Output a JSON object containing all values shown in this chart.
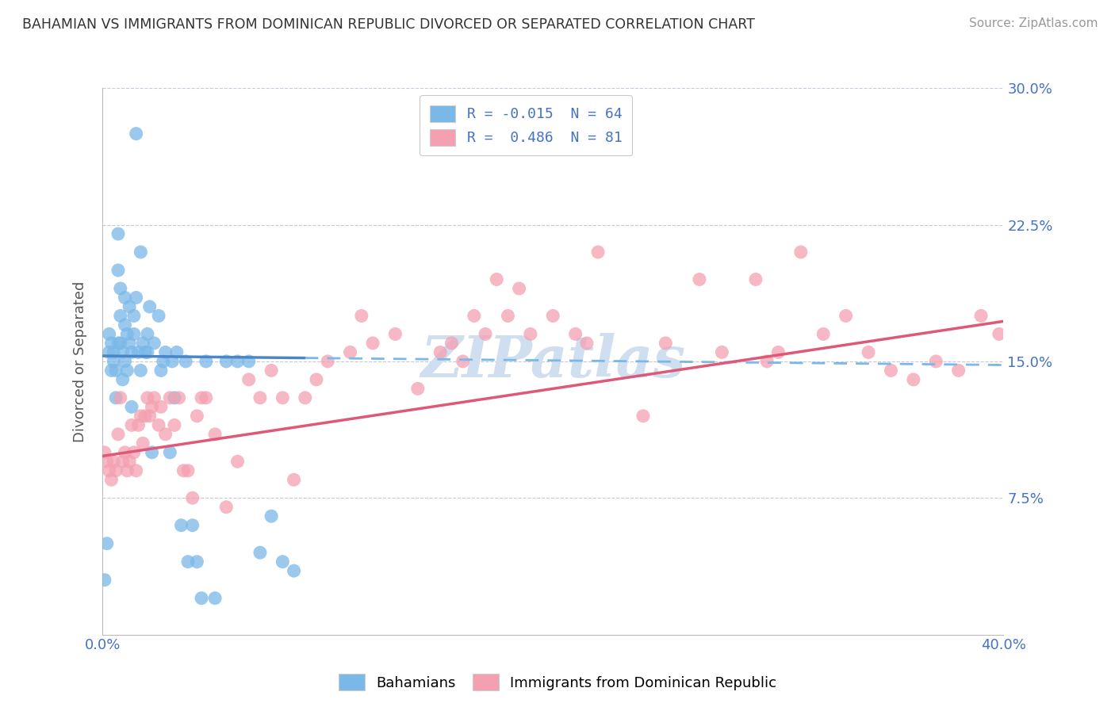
{
  "title": "BAHAMIAN VS IMMIGRANTS FROM DOMINICAN REPUBLIC DIVORCED OR SEPARATED CORRELATION CHART",
  "source": "Source: ZipAtlas.com",
  "ylabel": "Divorced or Separated",
  "xlim": [
    0.0,
    0.4
  ],
  "ylim": [
    0.0,
    0.3
  ],
  "bahamian_R": -0.015,
  "bahamian_N": 64,
  "dominican_R": 0.486,
  "dominican_N": 81,
  "blue_color": "#7ab8e8",
  "pink_color": "#f4a0b0",
  "blue_line_color": "#4a86c8",
  "pink_line_color": "#e05878",
  "blue_line_dashed_color": "#7ab8e8",
  "background_color": "#ffffff",
  "grid_color": "#c8c8d8",
  "title_color": "#333333",
  "source_color": "#999999",
  "tick_color": "#4472c4",
  "watermark_text": "ZIPatlas",
  "watermark_color": "#d0dff0",
  "blue_line_start_y": 0.153,
  "blue_line_end_y": 0.148,
  "pink_line_start_y": 0.098,
  "pink_line_end_y": 0.172,
  "bahamian_x": [
    0.001,
    0.002,
    0.003,
    0.003,
    0.004,
    0.004,
    0.005,
    0.005,
    0.006,
    0.006,
    0.007,
    0.007,
    0.007,
    0.008,
    0.008,
    0.008,
    0.009,
    0.009,
    0.01,
    0.01,
    0.01,
    0.011,
    0.011,
    0.012,
    0.012,
    0.013,
    0.013,
    0.014,
    0.014,
    0.015,
    0.015,
    0.016,
    0.017,
    0.017,
    0.018,
    0.019,
    0.02,
    0.02,
    0.021,
    0.022,
    0.023,
    0.025,
    0.026,
    0.027,
    0.028,
    0.03,
    0.031,
    0.032,
    0.033,
    0.035,
    0.037,
    0.038,
    0.04,
    0.042,
    0.044,
    0.046,
    0.05,
    0.055,
    0.06,
    0.065,
    0.07,
    0.075,
    0.08,
    0.085
  ],
  "bahamian_y": [
    0.03,
    0.05,
    0.155,
    0.165,
    0.145,
    0.16,
    0.15,
    0.155,
    0.13,
    0.145,
    0.16,
    0.2,
    0.22,
    0.175,
    0.19,
    0.16,
    0.14,
    0.155,
    0.17,
    0.185,
    0.15,
    0.165,
    0.145,
    0.16,
    0.18,
    0.155,
    0.125,
    0.165,
    0.175,
    0.185,
    0.275,
    0.155,
    0.145,
    0.21,
    0.16,
    0.155,
    0.165,
    0.155,
    0.18,
    0.1,
    0.16,
    0.175,
    0.145,
    0.15,
    0.155,
    0.1,
    0.15,
    0.13,
    0.155,
    0.06,
    0.15,
    0.04,
    0.06,
    0.04,
    0.02,
    0.15,
    0.02,
    0.15,
    0.15,
    0.15,
    0.045,
    0.065,
    0.04,
    0.035
  ],
  "dominican_x": [
    0.001,
    0.002,
    0.003,
    0.004,
    0.005,
    0.006,
    0.007,
    0.008,
    0.009,
    0.01,
    0.011,
    0.012,
    0.013,
    0.014,
    0.015,
    0.016,
    0.017,
    0.018,
    0.019,
    0.02,
    0.021,
    0.022,
    0.023,
    0.025,
    0.026,
    0.028,
    0.03,
    0.032,
    0.034,
    0.036,
    0.038,
    0.04,
    0.042,
    0.044,
    0.046,
    0.05,
    0.055,
    0.06,
    0.065,
    0.07,
    0.075,
    0.08,
    0.085,
    0.09,
    0.095,
    0.1,
    0.11,
    0.115,
    0.12,
    0.13,
    0.14,
    0.15,
    0.155,
    0.16,
    0.165,
    0.17,
    0.175,
    0.18,
    0.185,
    0.19,
    0.2,
    0.21,
    0.215,
    0.22,
    0.24,
    0.25,
    0.265,
    0.275,
    0.29,
    0.295,
    0.3,
    0.31,
    0.32,
    0.33,
    0.34,
    0.35,
    0.36,
    0.37,
    0.38,
    0.39,
    0.398
  ],
  "dominican_y": [
    0.1,
    0.095,
    0.09,
    0.085,
    0.095,
    0.09,
    0.11,
    0.13,
    0.095,
    0.1,
    0.09,
    0.095,
    0.115,
    0.1,
    0.09,
    0.115,
    0.12,
    0.105,
    0.12,
    0.13,
    0.12,
    0.125,
    0.13,
    0.115,
    0.125,
    0.11,
    0.13,
    0.115,
    0.13,
    0.09,
    0.09,
    0.075,
    0.12,
    0.13,
    0.13,
    0.11,
    0.07,
    0.095,
    0.14,
    0.13,
    0.145,
    0.13,
    0.085,
    0.13,
    0.14,
    0.15,
    0.155,
    0.175,
    0.16,
    0.165,
    0.135,
    0.155,
    0.16,
    0.15,
    0.175,
    0.165,
    0.195,
    0.175,
    0.19,
    0.165,
    0.175,
    0.165,
    0.16,
    0.21,
    0.12,
    0.16,
    0.195,
    0.155,
    0.195,
    0.15,
    0.155,
    0.21,
    0.165,
    0.175,
    0.155,
    0.145,
    0.14,
    0.15,
    0.145,
    0.175,
    0.165
  ]
}
